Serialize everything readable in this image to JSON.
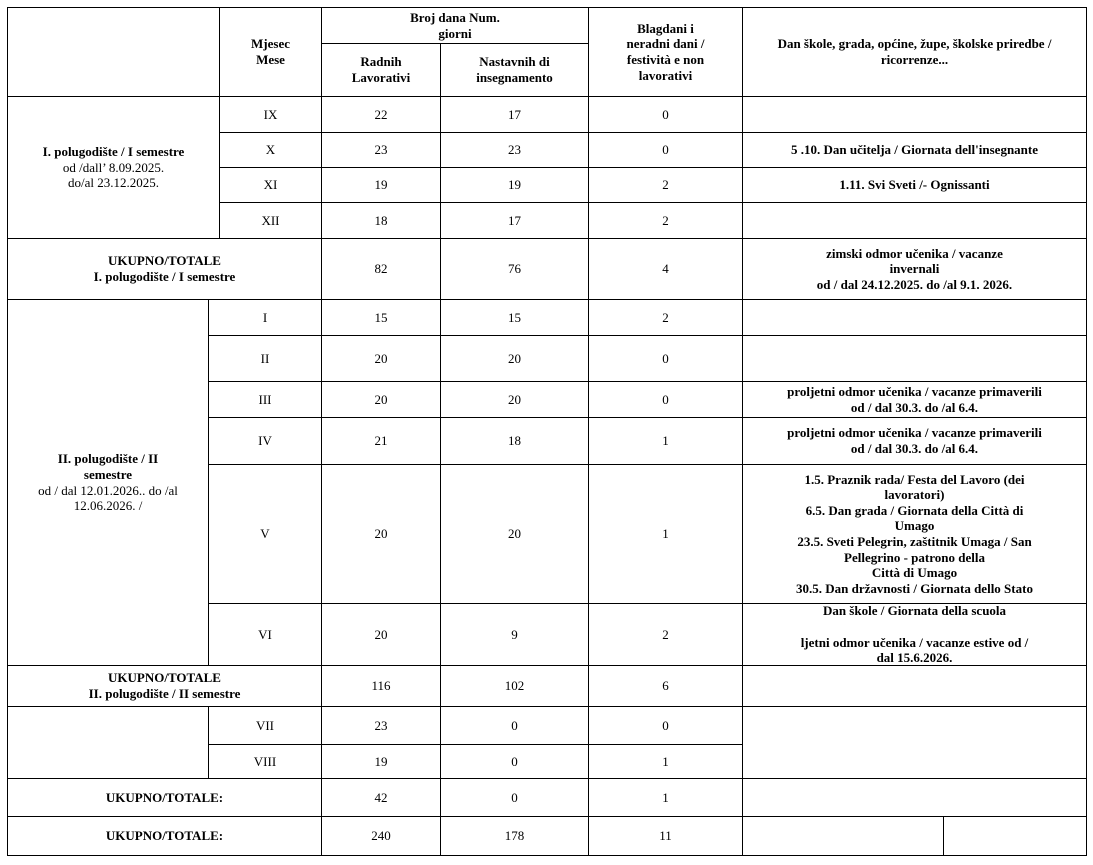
{
  "header": {
    "month": "Mjesec\nMese",
    "broj_dana": "Broj dana Num.\ngiorni",
    "radnih": "Radnih\nLavorativi",
    "nastavnih": "Nastavnih di\ninsegnamento",
    "blagdani": "Blagdani i\nneradni dani /\nfestività e non\nlavorativi",
    "notes": "Dan škole, grada, općine, župe, školske priredbe /\nricorrenze..."
  },
  "semester1": {
    "title": "I. polugodište / I semestre",
    "dates": "od /dall’ 8.09.2025.\ndo/al 23.12.2025.",
    "months": [
      {
        "month": "IX",
        "radnih": "22",
        "nastavnih": "17",
        "blagdani": "0",
        "note": ""
      },
      {
        "month": "X",
        "radnih": "23",
        "nastavnih": "23",
        "blagdani": "0",
        "note": "5 .10. Dan učitelja / Giornata dell'insegnante"
      },
      {
        "month": "XI",
        "radnih": "19",
        "nastavnih": "19",
        "blagdani": "2",
        "note": "1.11. Svi Sveti /- Ognissanti"
      },
      {
        "month": "XII",
        "radnih": "18",
        "nastavnih": "17",
        "blagdani": "2",
        "note": ""
      }
    ],
    "total": {
      "label": "UKUPNO/TOTALE",
      "sublabel": "I. polugodište / I semestre",
      "radnih": "82",
      "nastavnih": "76",
      "blagdani": "4",
      "note": "zimski odmor učenika / vacanze\ninvernali\nod / dal 24.12.2025.  do /al 9.1. 2026."
    }
  },
  "semester2": {
    "title": "II. polugodište / II\nsemestre",
    "dates": "od / dal 12.01.2026.. do /al\n12.06.2026. /",
    "months": [
      {
        "month": "I",
        "radnih": "15",
        "nastavnih": "15",
        "blagdani": "2",
        "note": ""
      },
      {
        "month": "II",
        "radnih": "20",
        "nastavnih": "20",
        "blagdani": "0",
        "note": ""
      },
      {
        "month": "III",
        "radnih": "20",
        "nastavnih": "20",
        "blagdani": "0",
        "note": "proljetni odmor učenika / vacanze primaverili\nod / dal 30.3. do /al 6.4."
      },
      {
        "month": "IV",
        "radnih": "21",
        "nastavnih": "18",
        "blagdani": "1",
        "note": "proljetni odmor učenika / vacanze primaverili\nod / dal 30.3. do /al 6.4."
      },
      {
        "month": "V",
        "radnih": "20",
        "nastavnih": "20",
        "blagdani": "1",
        "note": "1.5. Praznik rada/ Festa del Lavoro (dei\nlavoratori)\n6.5. Dan grada / Giornata della Città di\nUmago\n23.5. Sveti Pelegrin, zaštitnik Umaga / San\nPellegrino - patrono della\nCittà di Umago\n30.5. Dan državnosti / Giornata dello Stato"
      },
      {
        "month": "VI",
        "radnih": "20",
        "nastavnih": "9",
        "blagdani": "2",
        "note": "Dan škole / Giornata della scuola\n\nljetni odmor učenika / vacanze estive od /\ndal 15.6.2026."
      }
    ],
    "total": {
      "label": "UKUPNO/TOTALE",
      "sublabel": "II. polugodište / II semestre",
      "radnih": "116",
      "nastavnih": "102",
      "blagdani": "6",
      "note": ""
    }
  },
  "summer": {
    "months": [
      {
        "month": "VII",
        "radnih": "23",
        "nastavnih": "0",
        "blagdani": "0"
      },
      {
        "month": "VIII",
        "radnih": "19",
        "nastavnih": "0",
        "blagdani": "1"
      }
    ],
    "total": {
      "label": "UKUPNO/TOTALE:",
      "radnih": "42",
      "nastavnih": "0",
      "blagdani": "1"
    }
  },
  "grand_total": {
    "label": "UKUPNO/TOTALE:",
    "radnih": "240",
    "nastavnih": "178",
    "blagdani": "11"
  }
}
